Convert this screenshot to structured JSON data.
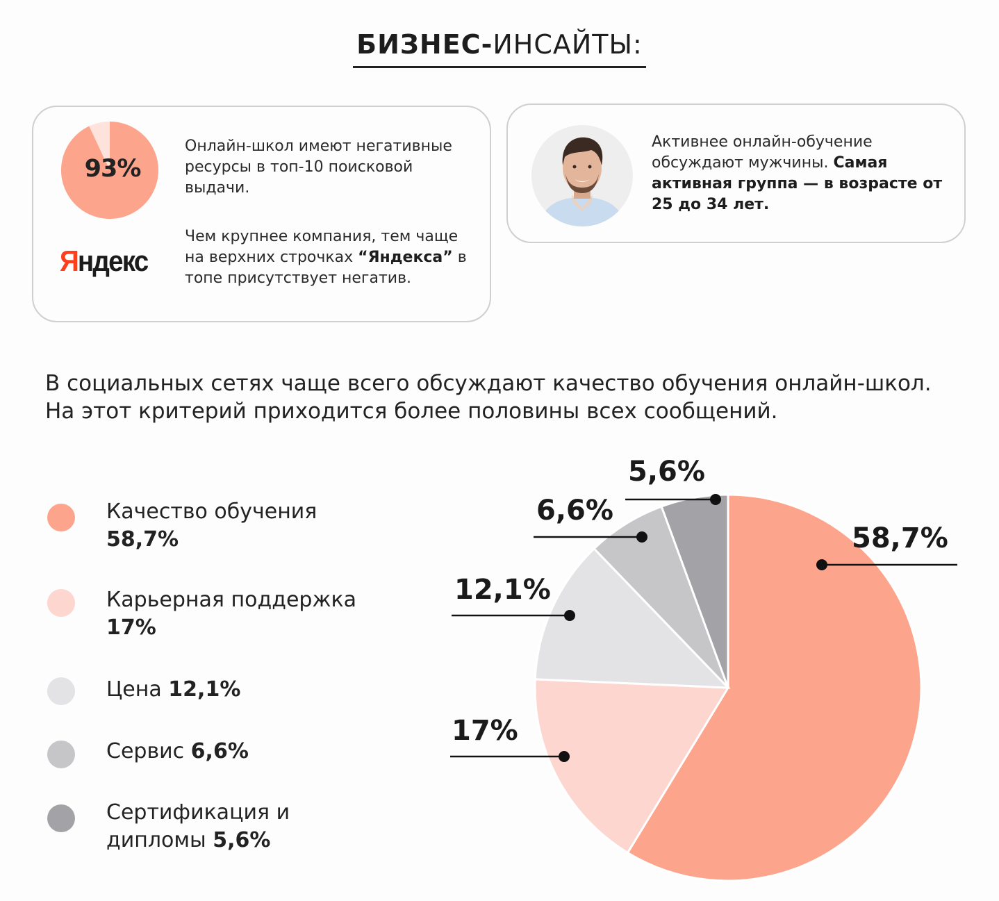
{
  "header": {
    "title_bold": "БИЗНЕС-",
    "title_light": "ИНСАЙТЫ:"
  },
  "card1": {
    "pie_value": 93,
    "pie_label": "93%",
    "pie_color": "#fca58c",
    "pie_rest_color": "#fde3dc",
    "text1": "Онлайн-школ имеют негативные ресурсы в топ-10 поисковой выдачи.",
    "logo_text_accent": "Я",
    "logo_text_rest": "ндекс",
    "text2_a": "Чем крупнее компания, тем чаще на верхних строчках ",
    "text2_bold": "“Яндекса”",
    "text2_b": " в топе присутствует негатив."
  },
  "card2": {
    "avatar_icon": "man-avatar-icon",
    "text_a": "Активнее онлайн-обучение обсуждают мужчины. ",
    "text_bold": "Самая активная группа — в возрасте от 25 до 34 лет."
  },
  "lead": "В социальных сетях чаще всего обсуждают качество обучения онлайн-школ. На этот критерий приходится более половины всех сообщений.",
  "legend": [
    {
      "name": "Качество обучения",
      "value": "58,7%",
      "color": "#fca58c"
    },
    {
      "name": "Карьерная поддержка",
      "value": "17%",
      "color": "#fdd6d0"
    },
    {
      "name": "Цена",
      "value": "12,1%",
      "color": "#e3e2e4"
    },
    {
      "name": "Сервис",
      "value": "6,6%",
      "color": "#c6c5c8"
    },
    {
      "name": "Сертификация и дипломы",
      "value": "5,6%",
      "color": "#a3a2a6"
    }
  ],
  "chart_data": {
    "type": "pie",
    "categories": [
      "Качество обучения",
      "Карьерная поддержка",
      "Цена",
      "Сервис",
      "Сертификация и дипломы"
    ],
    "values": [
      58.7,
      17,
      12.1,
      6.6,
      5.6
    ],
    "labels": [
      "58,7%",
      "17%",
      "12,1%",
      "6,6%",
      "5,6%"
    ],
    "colors": [
      "#fca58c",
      "#fdd6d0",
      "#e3e2e4",
      "#c6c5c8",
      "#a3a2a6"
    ],
    "start": "12 o'clock, clockwise",
    "legend": "left"
  }
}
